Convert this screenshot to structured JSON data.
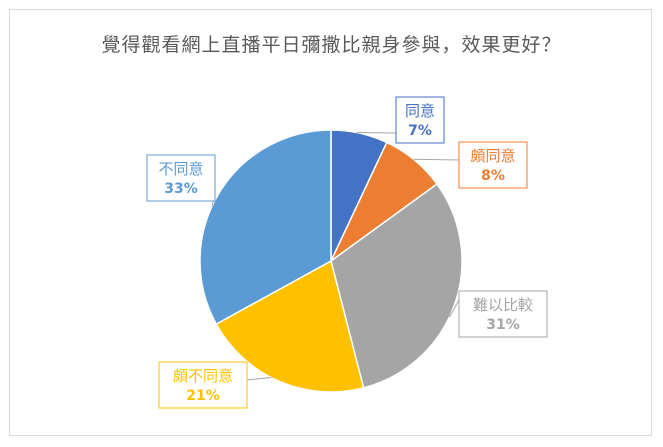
{
  "chart_data": {
    "type": "pie",
    "title": "覺得觀看網上直播平日彌撒比親身參與，效果更好？",
    "slices": [
      {
        "label": "同意",
        "value": 7,
        "pct_text": "7%",
        "color": "#4472C4"
      },
      {
        "label": "頗同意",
        "value": 8,
        "pct_text": "8%",
        "color": "#ED7D31"
      },
      {
        "label": "難以比較",
        "value": 31,
        "pct_text": "31%",
        "color": "#A5A5A5"
      },
      {
        "label": "頗不同意",
        "value": 21,
        "pct_text": "21%",
        "color": "#FFC000"
      },
      {
        "label": "不同意",
        "value": 33,
        "pct_text": "33%",
        "color": "#5B9BD5"
      }
    ],
    "legend": "none",
    "labels": "callouts"
  }
}
